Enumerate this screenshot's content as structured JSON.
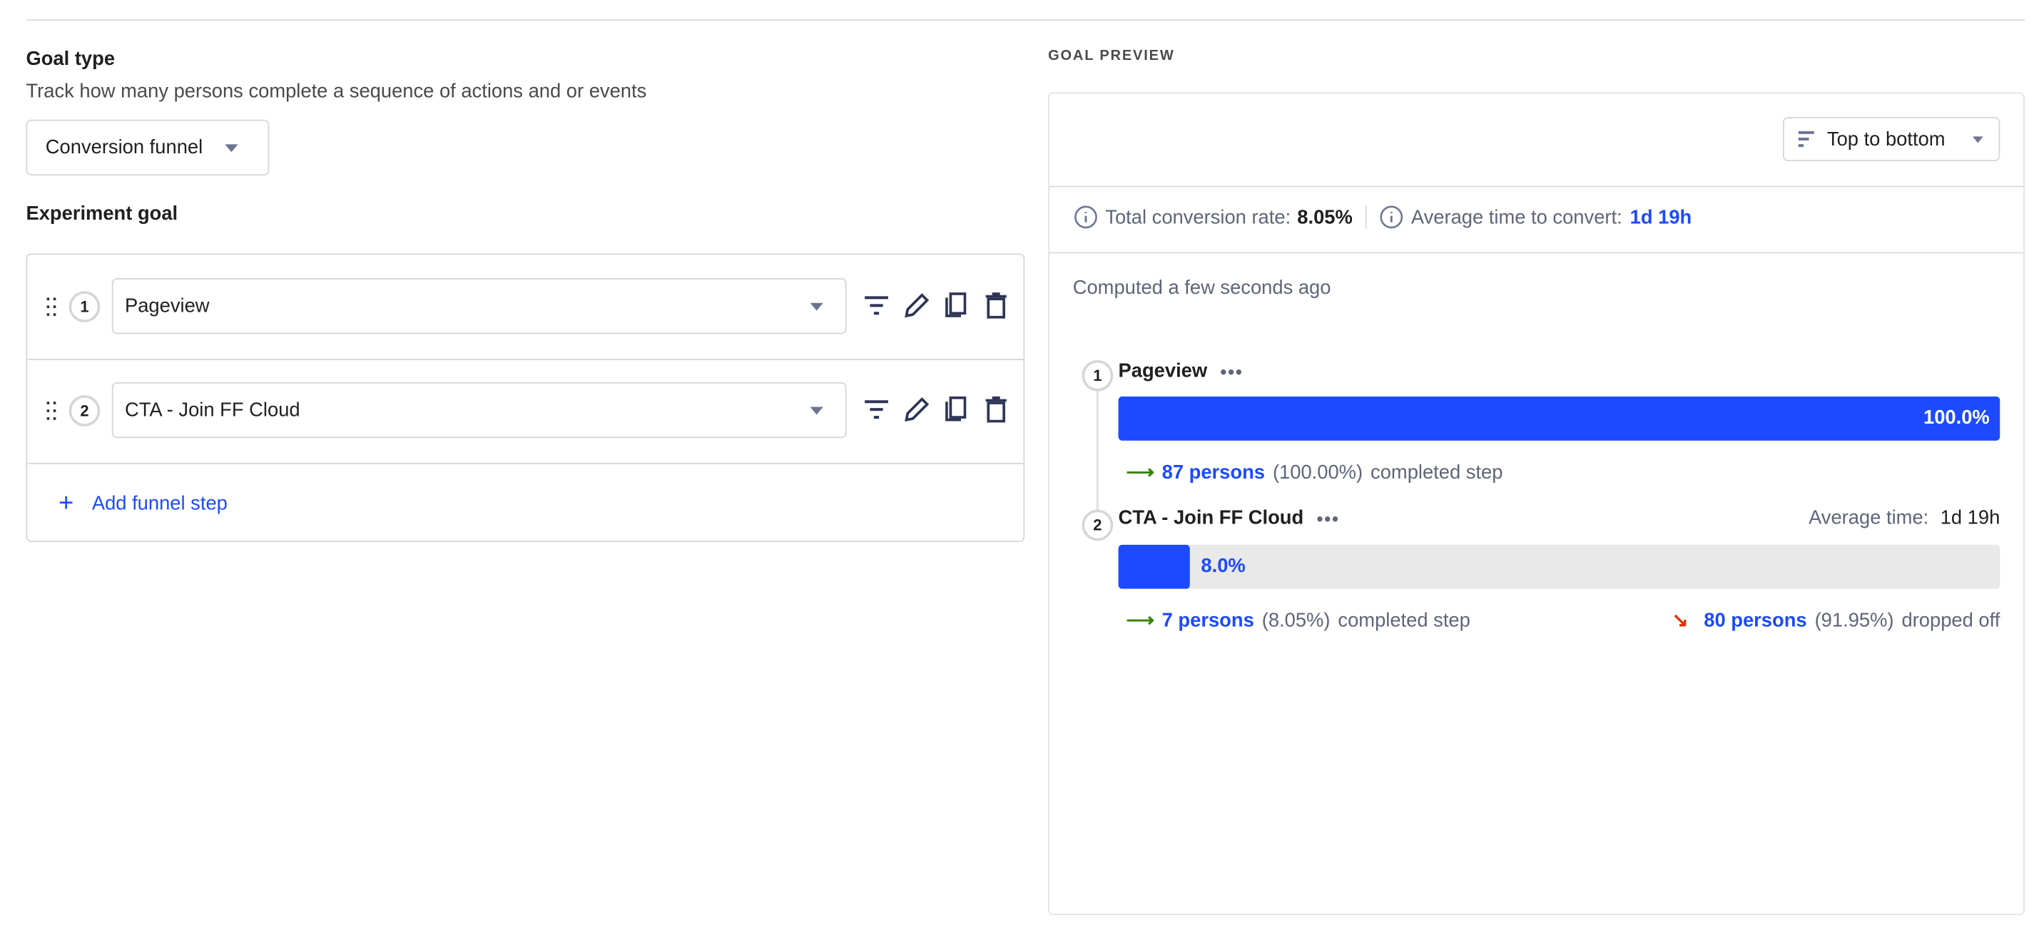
{
  "goal_type": {
    "title": "Goal type",
    "description": "Track how many persons complete a sequence of actions and or events",
    "selected": "Conversion funnel"
  },
  "experiment_goal": {
    "title": "Experiment goal",
    "steps": [
      {
        "number": "1",
        "event": "Pageview"
      },
      {
        "number": "2",
        "event": "CTA - Join FF Cloud"
      }
    ],
    "add_step_label": "Add funnel step"
  },
  "preview": {
    "title": "GOAL PREVIEW",
    "order_label": "Top to bottom",
    "total_conversion_label": "Total conversion rate:",
    "total_conversion_value": "8.05%",
    "avg_time_label": "Average time to convert:",
    "avg_time_value": "1d 19h",
    "computed": "Computed a few seconds ago",
    "steps": [
      {
        "number": "1",
        "name": "Pageview",
        "percent_label": "100.0%",
        "percent": 100.0,
        "completed_persons": "87 persons",
        "completed_pct": "(100.00%)",
        "completed_text": "completed step"
      },
      {
        "number": "2",
        "name": "CTA - Join FF Cloud",
        "percent_label": "8.0%",
        "percent": 8.05,
        "avg_time_label": "Average time:",
        "avg_time_value": "1d 19h",
        "completed_persons": "7 persons",
        "completed_pct": "(8.05%)",
        "completed_text": "completed step",
        "dropped_persons": "80 persons",
        "dropped_pct": "(91.95%)",
        "dropped_text": "dropped off"
      }
    ]
  },
  "colors": {
    "accent": "#1d4aff",
    "success": "#388600",
    "danger": "#db3707",
    "muted": "#5f6478"
  }
}
